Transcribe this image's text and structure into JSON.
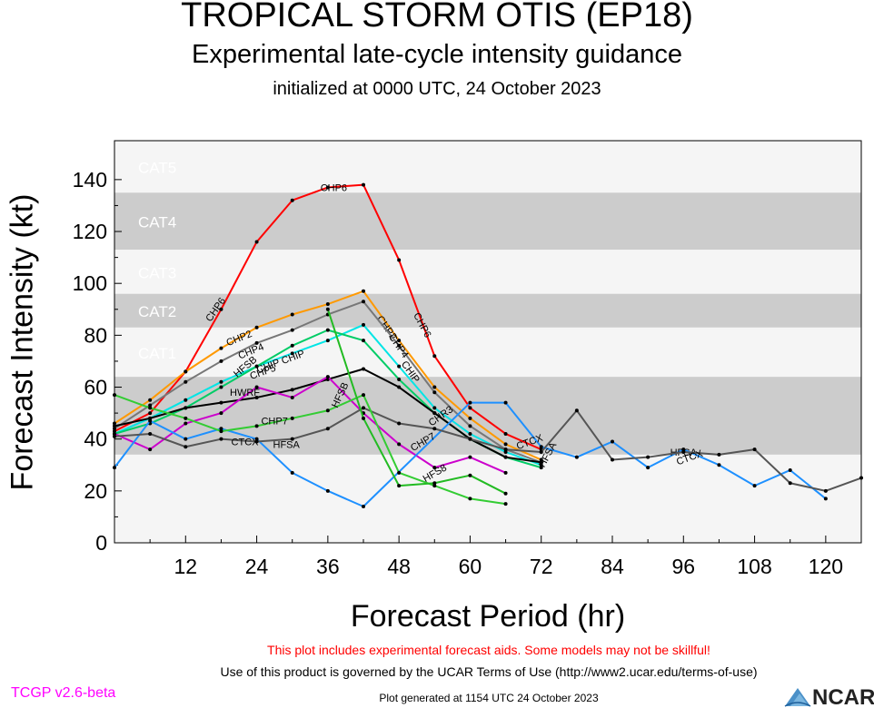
{
  "header": {
    "title": "TROPICAL STORM OTIS (EP18)",
    "subtitle": "Experimental late-cycle intensity guidance",
    "init": "initialized at 0000 UTC, 24 October 2023"
  },
  "footer": {
    "warning": "This plot includes experimental forecast aids. Some models may not be skillful!",
    "terms": "Use of this product is governed by the UCAR Terms of Use (http://www2.ucar.edu/terms-of-use)",
    "version": "TCGP v2.6-beta",
    "generated": "Plot generated at 1154 UTC   24 October 2023",
    "logo_text": "NCAR"
  },
  "chart_data": {
    "type": "line",
    "xlabel": "Forecast Period (hr)",
    "ylabel": "Forecast Intensity (kt)",
    "xlim": [
      0,
      126
    ],
    "ylim": [
      0,
      155
    ],
    "xticks": [
      12,
      24,
      36,
      48,
      60,
      72,
      84,
      96,
      108,
      120
    ],
    "yticks": [
      0,
      20,
      40,
      60,
      80,
      100,
      120,
      140
    ],
    "bands": [
      {
        "label": "CAT1",
        "from": 64,
        "to": 83,
        "color": "#f5f5f5"
      },
      {
        "label": "CAT2",
        "from": 83,
        "to": 96,
        "color": "#cccccc"
      },
      {
        "label": "CAT3",
        "from": 96,
        "to": 113,
        "color": "#f5f5f5"
      },
      {
        "label": "CAT4",
        "from": 113,
        "to": 135,
        "color": "#cccccc"
      },
      {
        "label": "CAT5",
        "from": 135,
        "to": 155,
        "color": "#f5f5f5"
      }
    ],
    "lower_bands": [
      {
        "from": 0,
        "to": 34,
        "color": "#f5f5f5"
      },
      {
        "from": 34,
        "to": 64,
        "color": "#cccccc"
      }
    ],
    "series": [
      {
        "name": "CHP6",
        "color": "#ff0000",
        "x": [
          0,
          6,
          12,
          18,
          24,
          30,
          36,
          42,
          48,
          54,
          60,
          66,
          72
        ],
        "y": [
          43,
          50,
          66,
          90,
          116,
          132,
          137,
          138,
          109,
          72,
          52,
          42,
          36
        ],
        "labels": [
          {
            "text": "CHP6",
            "x": 17,
            "y": 90,
            "angle": -55
          },
          {
            "text": "CHP6",
            "x": 37,
            "y": 137,
            "angle": 0
          },
          {
            "text": "CHP6",
            "x": 52,
            "y": 84,
            "angle": 62
          }
        ]
      },
      {
        "name": "CHP2",
        "color": "#ff9900",
        "x": [
          0,
          6,
          12,
          18,
          24,
          30,
          36,
          42,
          48,
          54,
          60,
          66,
          72
        ],
        "y": [
          46,
          55,
          66,
          75,
          83,
          88,
          92,
          97,
          78,
          60,
          48,
          38,
          32
        ],
        "labels": [
          {
            "text": "CHP2",
            "x": 21,
            "y": 79,
            "angle": -22
          },
          {
            "text": "CHP2",
            "x": 46,
            "y": 83,
            "angle": 55
          }
        ]
      },
      {
        "name": "CHP4",
        "color": "#777777",
        "x": [
          0,
          6,
          12,
          18,
          24,
          30,
          36,
          42,
          48,
          54,
          60,
          66,
          72
        ],
        "y": [
          44,
          53,
          62,
          70,
          77,
          82,
          88,
          93,
          76,
          58,
          45,
          36,
          31
        ],
        "labels": [
          {
            "text": "CHP4",
            "x": 23,
            "y": 74,
            "angle": -22
          },
          {
            "text": "CHP4",
            "x": 48,
            "y": 76,
            "angle": 55
          }
        ]
      },
      {
        "name": "CHP CHIP",
        "color": "#00e5e5",
        "x": [
          0,
          6,
          12,
          18,
          24,
          30,
          36,
          42,
          48,
          54,
          60,
          66,
          72
        ],
        "y": [
          42,
          48,
          55,
          62,
          68,
          73,
          78,
          84,
          68,
          52,
          42,
          35,
          30
        ],
        "labels": [
          {
            "text": "CHIP CHIP",
            "x": 28,
            "y": 70,
            "angle": -20
          },
          {
            "text": "CHIP",
            "x": 50,
            "y": 66,
            "angle": 55
          }
        ]
      },
      {
        "name": "HFS",
        "color": "#00cc66",
        "x": [
          0,
          6,
          12,
          18,
          24,
          30,
          36,
          42,
          48,
          54,
          60,
          66,
          72
        ],
        "y": [
          42,
          46,
          52,
          60,
          68,
          76,
          82,
          78,
          63,
          50,
          40,
          33,
          29
        ],
        "labels": [
          {
            "text": "HFSB",
            "x": 22,
            "y": 68,
            "angle": -40
          },
          {
            "text": "CHP5",
            "x": 25,
            "y": 66,
            "angle": -20
          }
        ]
      },
      {
        "name": "CHR3",
        "color": "#000000",
        "x": [
          0,
          6,
          12,
          18,
          24,
          30,
          36,
          42,
          48,
          54,
          60,
          66,
          72
        ],
        "y": [
          45,
          48,
          52,
          54,
          56,
          59,
          63,
          67,
          60,
          50,
          40,
          33,
          31
        ],
        "labels": [
          {
            "text": "CHR3",
            "x": 55,
            "y": 49,
            "angle": -35
          }
        ]
      },
      {
        "name": "HWRF",
        "color": "#cc00cc",
        "x": [
          0,
          6,
          12,
          18,
          24,
          30,
          36,
          42,
          48,
          54,
          60,
          66
        ],
        "y": [
          42,
          36,
          46,
          50,
          60,
          56,
          64,
          50,
          38,
          29,
          33,
          27
        ],
        "labels": [
          {
            "text": "HWRF",
            "x": 22,
            "y": 58,
            "angle": 0
          }
        ]
      },
      {
        "name": "HFSA",
        "color": "#1e90ff",
        "x": [
          0,
          6,
          12,
          18,
          24,
          30,
          36,
          42,
          60,
          66,
          72,
          78,
          84,
          90,
          96,
          102,
          108,
          114,
          120
        ],
        "y": [
          29,
          47,
          40,
          44,
          40,
          27,
          20,
          14,
          54,
          54,
          37,
          33,
          39,
          29,
          36,
          30,
          22,
          28,
          17
        ],
        "labels": [
          {
            "text": "HFSA",
            "x": 29,
            "y": 38,
            "angle": 0
          },
          {
            "text": "HFSA",
            "x": 73,
            "y": 34,
            "angle": -62
          },
          {
            "text": "HFSA",
            "x": 96,
            "y": 35,
            "angle": 0
          }
        ]
      },
      {
        "name": "CTCX",
        "color": "#555555",
        "x": [
          0,
          6,
          12,
          18,
          24,
          30,
          36,
          42,
          48,
          54,
          60,
          66,
          72,
          78,
          84,
          90,
          96,
          102,
          108,
          114,
          120,
          126
        ],
        "y": [
          41,
          42,
          37,
          40,
          39,
          40,
          44,
          52,
          46,
          44,
          40,
          36,
          35,
          51,
          32,
          33,
          35,
          34,
          36,
          23,
          20,
          25
        ],
        "labels": [
          {
            "text": "CTCX",
            "x": 22,
            "y": 39,
            "angle": 0
          },
          {
            "text": "CTCX",
            "x": 70,
            "y": 39,
            "angle": -20
          },
          {
            "text": "CTCX",
            "x": 97,
            "y": 33,
            "angle": -20
          }
        ]
      },
      {
        "name": "CHP7",
        "color": "#33cc33",
        "x": [
          0,
          6,
          12,
          18,
          24,
          30,
          36,
          42,
          48,
          54,
          60,
          66
        ],
        "y": [
          57,
          52,
          48,
          43,
          45,
          48,
          51,
          57,
          27,
          22,
          17,
          15
        ],
        "labels": [
          {
            "text": "CHP7",
            "x": 27,
            "y": 47,
            "angle": 0
          },
          {
            "text": "CHP7",
            "x": 52,
            "y": 39,
            "angle": -30
          }
        ]
      },
      {
        "name": "HFS8",
        "color": "#22bb22",
        "x": [
          36,
          42,
          48,
          54,
          60,
          66
        ],
        "y": [
          90,
          48,
          22,
          23,
          26,
          19
        ],
        "labels": [
          {
            "text": "HFS8",
            "x": 54,
            "y": 27,
            "angle": -30
          },
          {
            "text": "HFSB",
            "x": 38,
            "y": 57,
            "angle": -65
          }
        ]
      }
    ],
    "band_label_color": "#dddddd"
  }
}
